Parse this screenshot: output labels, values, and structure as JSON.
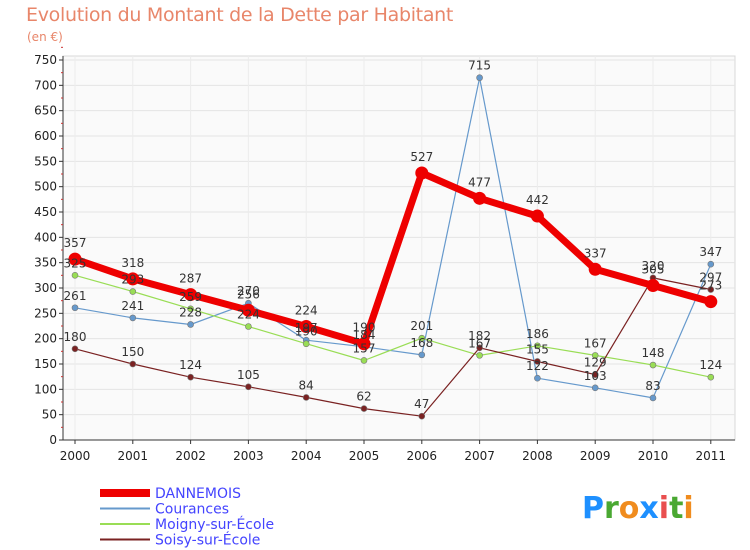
{
  "title": "Evolution du Montant de la Dette par Habitant",
  "subtitle": "(en €)",
  "logo": "Proxiti",
  "colors": {
    "background": "#ffffff",
    "plot_background": "#fafafa",
    "title": "#e8866a",
    "legend_text": "#4444ff",
    "logo_p": "#1e90ff",
    "logo_r": "#4aa832",
    "logo_o": "#f08c1e",
    "logo_x": "#1e90ff",
    "logo_i": "#e94f4f",
    "logo_t": "#4aa832",
    "logo_i2": "#f08c1e"
  },
  "chart_data": {
    "type": "line",
    "title": "Evolution du Montant de la Dette par Habitant",
    "subtitle": "(en €)",
    "xlabel": "",
    "ylabel": "",
    "x": [
      "2000",
      "2001",
      "2002",
      "2003",
      "2004",
      "2005",
      "2006",
      "2007",
      "2008",
      "2009",
      "2010",
      "2011"
    ],
    "ylim": [
      0,
      750
    ],
    "yticks": [
      0,
      50,
      100,
      150,
      200,
      250,
      300,
      350,
      400,
      450,
      500,
      550,
      600,
      650,
      700,
      750
    ],
    "grid": true,
    "legend": "bottom-left",
    "series": [
      {
        "name": "DANNEMOIS",
        "color": "#ee0000",
        "width": 7,
        "values": [
          357,
          318,
          287,
          256,
          224,
          190,
          527,
          477,
          442,
          337,
          305,
          273
        ]
      },
      {
        "name": "Courances",
        "color": "#6699cc",
        "width": 1.2,
        "values": [
          261,
          241,
          228,
          270,
          197,
          184,
          168,
          715,
          122,
          103,
          83,
          347
        ]
      },
      {
        "name": "Moigny-sur-École",
        "color": "#99dd55",
        "width": 1.2,
        "values": [
          325,
          293,
          259,
          224,
          190,
          157,
          201,
          167,
          186,
          167,
          148,
          124
        ]
      },
      {
        "name": "Soisy-sur-École",
        "color": "#7a2222",
        "width": 1.2,
        "values": [
          180,
          150,
          124,
          105,
          84,
          62,
          47,
          182,
          155,
          129,
          320,
          297
        ]
      }
    ]
  }
}
